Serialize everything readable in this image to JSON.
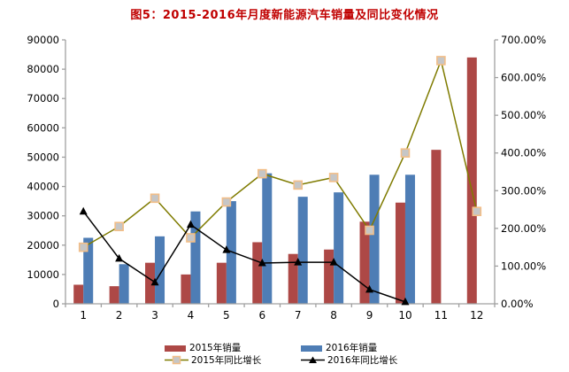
{
  "title": "图5：2015-2016年月度新能源汽车销量及同比变化情况",
  "colors": {
    "title": "#c00000",
    "axis": "#a0a0a0",
    "bar_2015": "#ad4846",
    "bar_2016": "#4e7db5",
    "line_2015": "#7f7b00",
    "line_2016": "#000000",
    "marker_square_fill": "#c6c6c6",
    "marker_square_border": "#f2be88"
  },
  "chart_data": {
    "type": "bar",
    "subtype": "bar-line combo, dual axis",
    "title": "图5：2015-2016年月度新能源汽车销量及同比变化情况",
    "categories": [
      "1",
      "2",
      "3",
      "4",
      "5",
      "6",
      "7",
      "8",
      "9",
      "10",
      "11",
      "12"
    ],
    "series": [
      {
        "name": "2015年销量",
        "type": "bar",
        "axis": "left",
        "color": "#ad4846",
        "values": [
          6500,
          6000,
          14000,
          10000,
          14000,
          21000,
          17000,
          18500,
          28000,
          34500,
          52500,
          84000
        ]
      },
      {
        "name": "2016年销量",
        "type": "bar",
        "axis": "left",
        "color": "#4e7db5",
        "values": [
          22500,
          13500,
          23000,
          31500,
          35000,
          44500,
          36500,
          38000,
          44000,
          44000,
          null,
          null
        ]
      },
      {
        "name": "2015年同比增长",
        "type": "line",
        "axis": "right",
        "color": "#7f7b00",
        "marker": "square",
        "values": [
          150,
          205,
          280,
          175,
          270,
          345,
          315,
          335,
          195,
          400,
          645,
          245
        ]
      },
      {
        "name": "2016年同比增长",
        "type": "line",
        "axis": "right",
        "color": "#000000",
        "marker": "triangle",
        "values": [
          245,
          120,
          57,
          210,
          143,
          108,
          110,
          110,
          38,
          5,
          null,
          null
        ]
      }
    ],
    "left_axis": {
      "min": 0,
      "max": 90000,
      "step": 10000,
      "tick_labels": [
        "0",
        "10000",
        "20000",
        "30000",
        "40000",
        "50000",
        "60000",
        "70000",
        "80000",
        "90000"
      ]
    },
    "right_axis": {
      "min": 0,
      "max": 700,
      "step": 100,
      "unit": "%",
      "tick_labels": [
        "0.00%",
        "100.00%",
        "200.00%",
        "300.00%",
        "400.00%",
        "500.00%",
        "600.00%",
        "700.00%"
      ]
    },
    "grid": "off",
    "legend_position": "bottom, two columns"
  }
}
